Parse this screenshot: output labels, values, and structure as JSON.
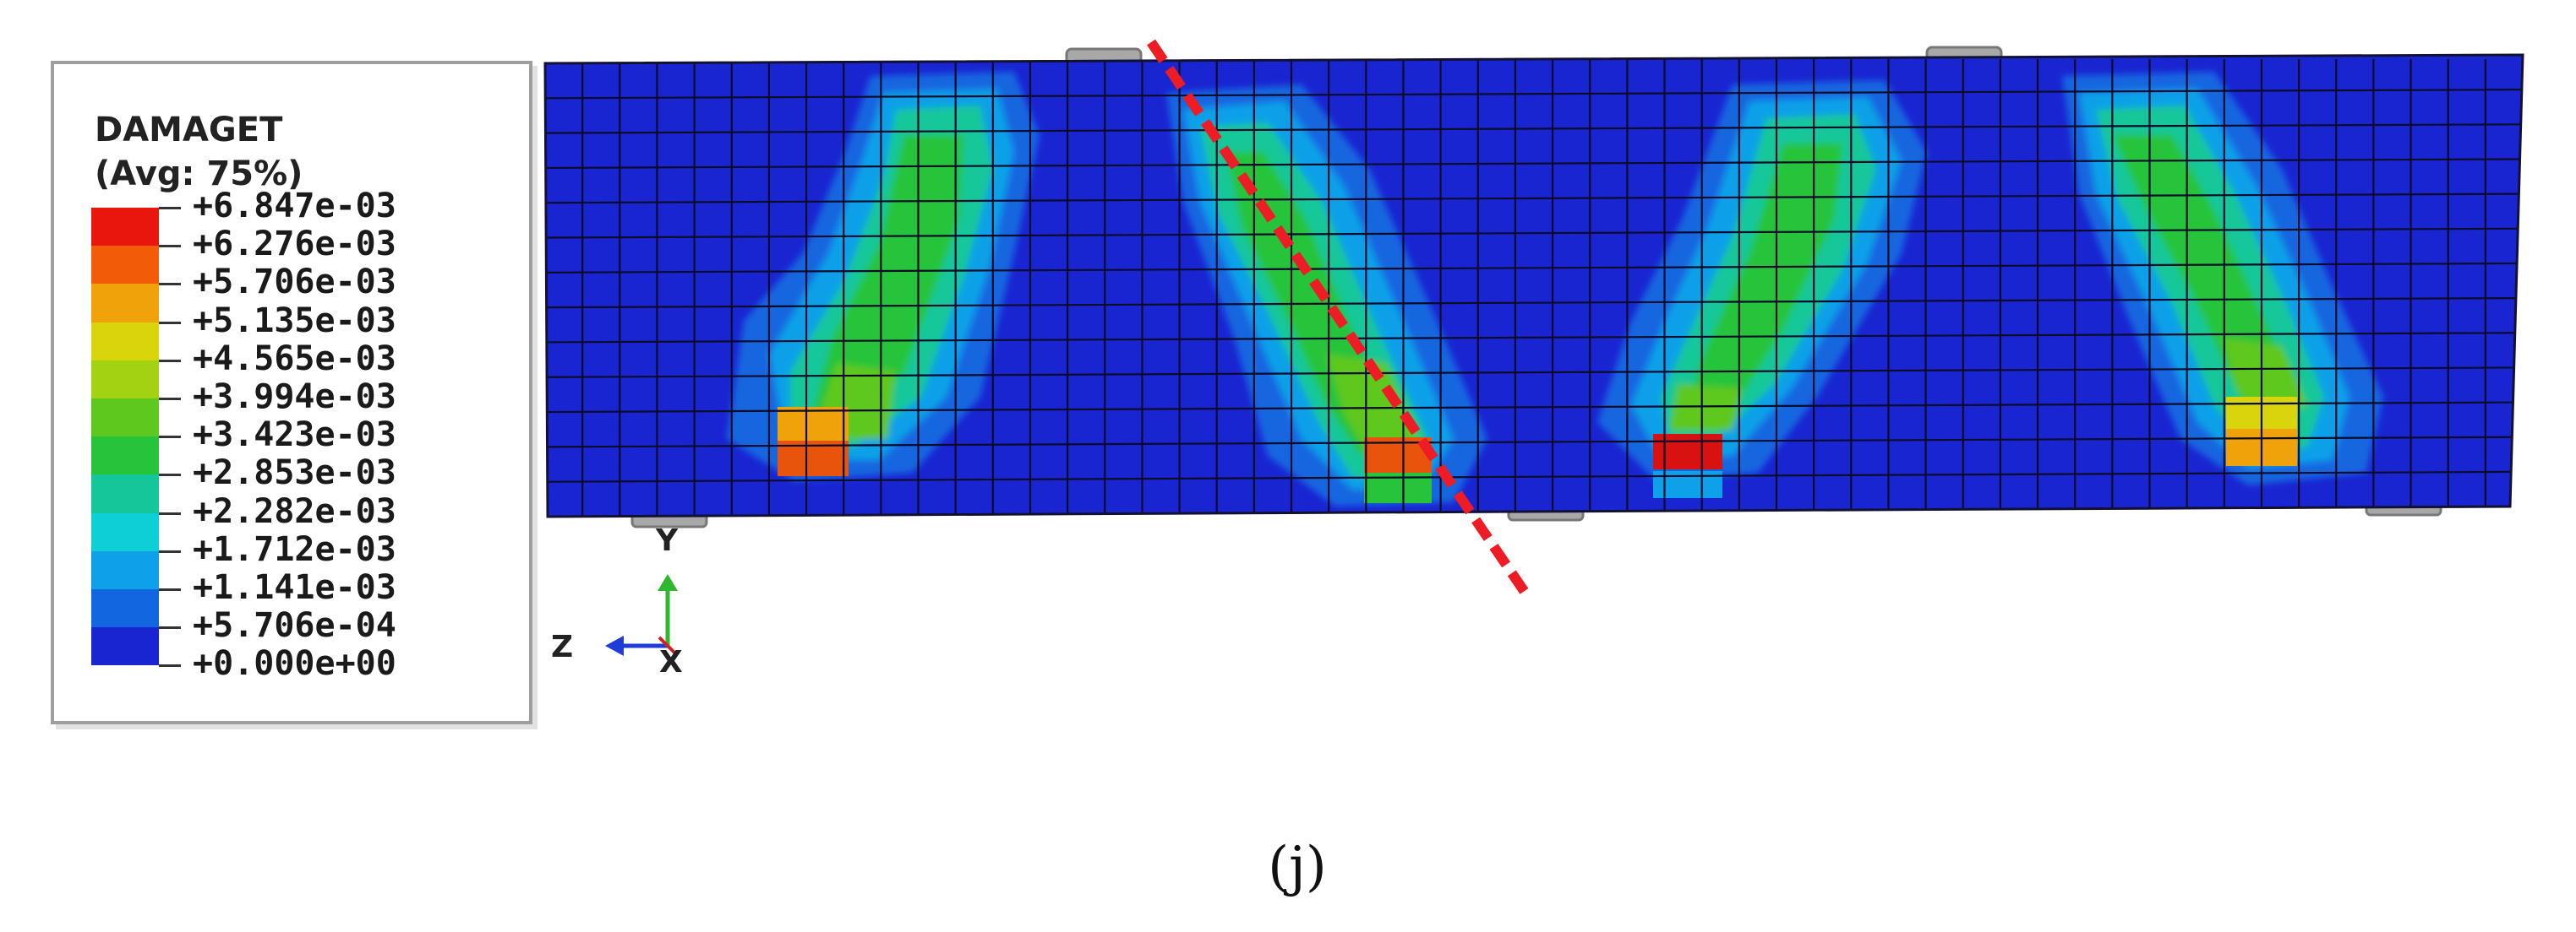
{
  "legend": {
    "title": "DAMAGET",
    "subtitle": "(Avg: 75%)",
    "entries": [
      {
        "label": "+6.847e-03"
      },
      {
        "label": "+6.276e-03",
        "color": "#e8160c"
      },
      {
        "label": "+5.706e-03",
        "color": "#f25c07"
      },
      {
        "label": "+5.135e-03",
        "color": "#f0a20a"
      },
      {
        "label": "+4.565e-03",
        "color": "#d9d40b"
      },
      {
        "label": "+3.994e-03",
        "color": "#a3d212"
      },
      {
        "label": "+3.423e-03",
        "color": "#5ec81e"
      },
      {
        "label": "+2.853e-03",
        "color": "#26c43a"
      },
      {
        "label": "+2.282e-03",
        "color": "#14c79a"
      },
      {
        "label": "+1.712e-03",
        "color": "#0fcfd6"
      },
      {
        "label": "+1.141e-03",
        "color": "#0ea0e8"
      },
      {
        "label": "+5.706e-04",
        "color": "#1266e0"
      },
      {
        "label": "+0.000e+00",
        "color": "#1a25d2"
      }
    ]
  },
  "triad": {
    "y_label": "Y",
    "z_label": "Z",
    "x_label": "X"
  },
  "panel_label": "(j)",
  "colors": {
    "background_mesh": "#1a25d2",
    "mesh_lines": "#0b0b2a",
    "crack_line": "#ee1c24",
    "plate": "#a8a8a8"
  }
}
